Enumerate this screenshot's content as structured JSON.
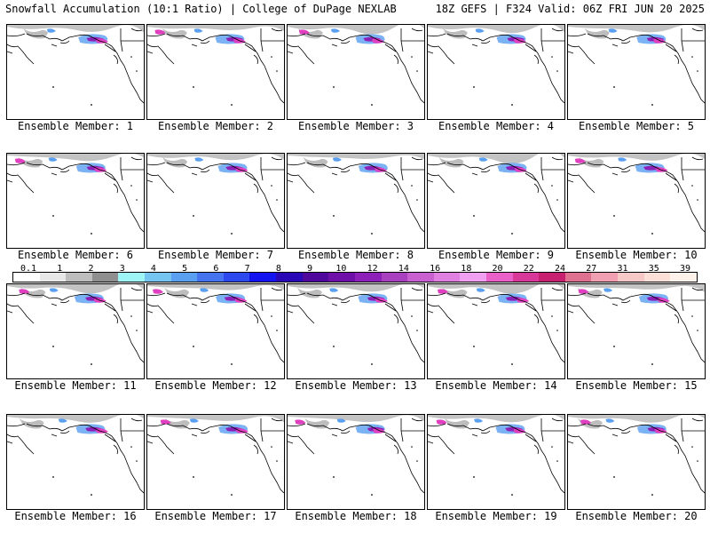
{
  "header": {
    "title": "Snowfall Accumulation (10:1 Ratio) | College of DuPage NEXLAB",
    "valid": "18Z GEFS | F324 Valid: 06Z FRI JUN 20 2025"
  },
  "colorbar": {
    "labels": [
      "0.1",
      "1",
      "2",
      "3",
      "4",
      "5",
      "6",
      "7",
      "8",
      "9",
      "10",
      "12",
      "14",
      "16",
      "18",
      "20",
      "22",
      "24",
      "27",
      "31",
      "35",
      "39"
    ],
    "colors": [
      "#ffffff",
      "#e8e8e8",
      "#bdbdbd",
      "#8f8f8f",
      "#9ff5f5",
      "#75c5f0",
      "#5a9ff0",
      "#4673f0",
      "#2e48f0",
      "#1414f0",
      "#2a08b8",
      "#50089c",
      "#6e10a8",
      "#8c20b8",
      "#a840c0",
      "#c860d0",
      "#e080e0",
      "#f0a0f0",
      "#e860c8",
      "#d83898",
      "#c82070",
      "#e07090",
      "#f0a0b0",
      "#f8c8c8",
      "#fce0d8",
      "#fff2ea"
    ]
  },
  "members": [
    {
      "label": "Ensemble Member: 1"
    },
    {
      "label": "Ensemble Member: 2"
    },
    {
      "label": "Ensemble Member: 3"
    },
    {
      "label": "Ensemble Member: 4"
    },
    {
      "label": "Ensemble Member: 5"
    },
    {
      "label": "Ensemble Member: 6"
    },
    {
      "label": "Ensemble Member: 7"
    },
    {
      "label": "Ensemble Member: 8"
    },
    {
      "label": "Ensemble Member: 9"
    },
    {
      "label": "Ensemble Member: 10"
    },
    {
      "label": "Ensemble Member: 11"
    },
    {
      "label": "Ensemble Member: 12"
    },
    {
      "label": "Ensemble Member: 13"
    },
    {
      "label": "Ensemble Member: 14"
    },
    {
      "label": "Ensemble Member: 15"
    },
    {
      "label": "Ensemble Member: 16"
    },
    {
      "label": "Ensemble Member: 17"
    },
    {
      "label": "Ensemble Member: 18"
    },
    {
      "label": "Ensemble Member: 19"
    },
    {
      "label": "Ensemble Member: 20"
    }
  ],
  "colors": {
    "coast": "#000000",
    "snow_grey": "#bdbdbd",
    "snow_blue": "#5a9ff0",
    "snow_purple": "#8c20b8",
    "snow_magenta": "#e040c0"
  }
}
